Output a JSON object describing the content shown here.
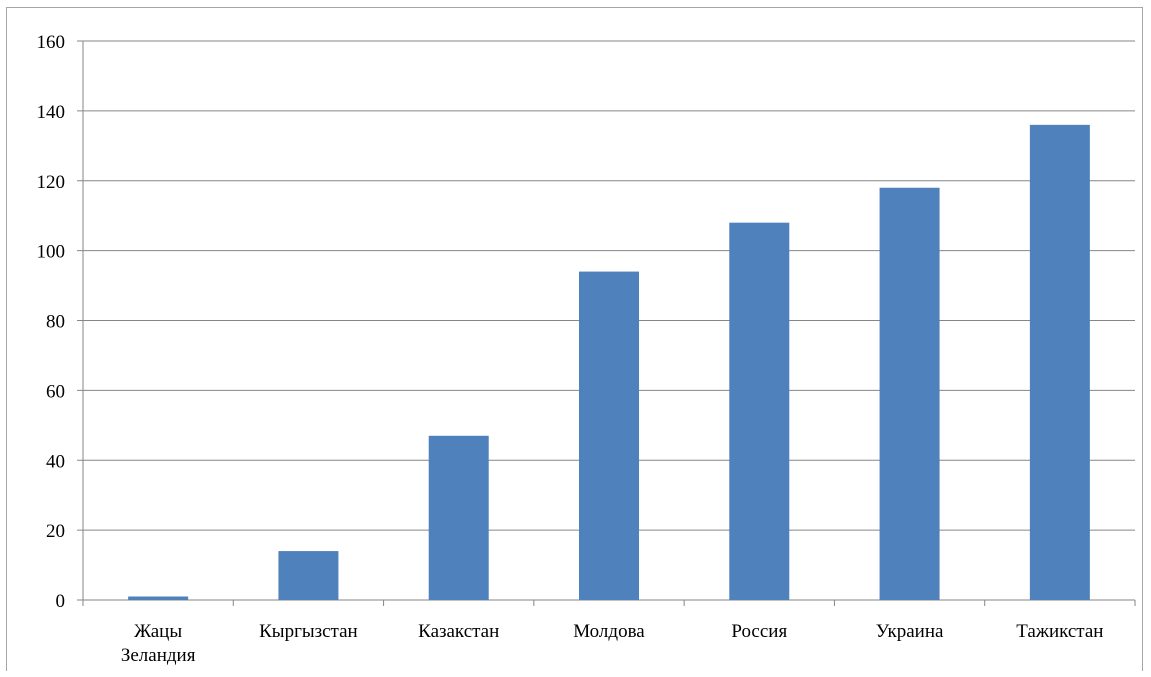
{
  "chart_data": {
    "type": "bar",
    "categories": [
      [
        "Жацы",
        "Зеландия"
      ],
      [
        "Кыргызстан"
      ],
      [
        "Казакстан"
      ],
      [
        "Молдова"
      ],
      [
        "Россия"
      ],
      [
        "Украина"
      ],
      [
        "Тажикстан"
      ]
    ],
    "values": [
      1,
      14,
      47,
      94,
      108,
      118,
      136
    ],
    "ylim": [
      0,
      160
    ],
    "yticks": [
      0,
      20,
      40,
      60,
      80,
      100,
      120,
      140,
      160
    ],
    "grid": true,
    "bar_color": "#4f81bd",
    "title": "",
    "xlabel": "",
    "ylabel": ""
  }
}
